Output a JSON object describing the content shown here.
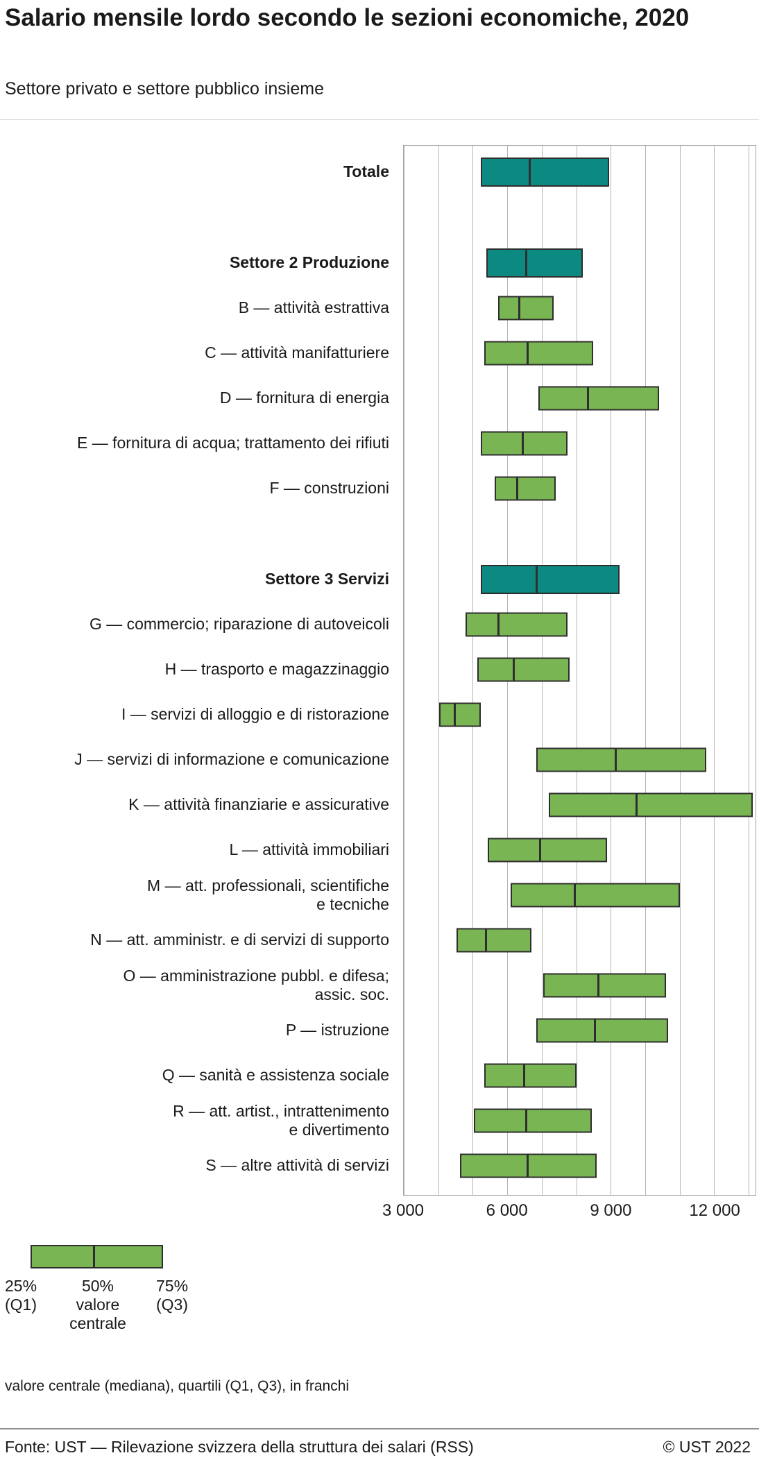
{
  "header": {
    "title": "Salario mensile lordo secondo le sezioni economiche, 2020",
    "subtitle": "Settore privato e settore pubblico insieme"
  },
  "chart_data": {
    "type": "bar",
    "variant": "horizontal quartile-range bars (Q1–Q3 box with median line)",
    "unit": "franchi (CHF) al mese",
    "title": "Salario mensile lordo secondo le sezioni economiche, 2020",
    "subtitle": "Settore privato e settore pubblico insieme",
    "xlabel": "",
    "legend_position": "bottom-left",
    "grid": true,
    "axis": {
      "min": 3000,
      "max": 13200,
      "grid_step": 1000,
      "grid_max": 13000,
      "ticks": [
        {
          "value": 3000,
          "label": "3 000"
        },
        {
          "value": 6000,
          "label": "6 000"
        },
        {
          "value": 9000,
          "label": "9 000"
        },
        {
          "value": 12000,
          "label": "12 000"
        }
      ]
    },
    "colors": {
      "teal": "#0c8a82",
      "green": "#7ab553",
      "outline": "#2e2e2e",
      "grid": "#b5b5b5"
    },
    "rows": [
      {
        "label": "Totale",
        "bold": true,
        "color": "teal",
        "q1": 5250,
        "median": 6650,
        "q3": 8950
      },
      {
        "spacer": true
      },
      {
        "label": "Settore 2 Produzione",
        "bold": true,
        "color": "teal",
        "q1": 5400,
        "median": 6550,
        "q3": 8200
      },
      {
        "label": "B — attività estrattiva",
        "color": "green",
        "q1": 5750,
        "median": 6350,
        "q3": 7350
      },
      {
        "label": "C — attività manifatturiere",
        "color": "green",
        "q1": 5350,
        "median": 6600,
        "q3": 8500
      },
      {
        "label": "D — fornitura di energia",
        "color": "green",
        "q1": 6900,
        "median": 8350,
        "q3": 10400
      },
      {
        "label": "E — fornitura di acqua; trattamento dei rifiuti",
        "color": "green",
        "q1": 5250,
        "median": 6450,
        "q3": 7750
      },
      {
        "label": "F — construzioni",
        "color": "green",
        "q1": 5650,
        "median": 6300,
        "q3": 7400
      },
      {
        "spacer": true
      },
      {
        "label": "Settore 3 Servizi",
        "bold": true,
        "color": "teal",
        "q1": 5250,
        "median": 6850,
        "q3": 9250
      },
      {
        "label": "G — commercio; riparazione di autoveicoli",
        "color": "green",
        "q1": 4800,
        "median": 5750,
        "q3": 7750
      },
      {
        "label": "H — trasporto e magazzinaggio",
        "color": "green",
        "q1": 5150,
        "median": 6200,
        "q3": 7800
      },
      {
        "label": "I — servizi di alloggio e di ristorazione",
        "color": "green",
        "q1": 4050,
        "median": 4500,
        "q3": 5250
      },
      {
        "label": "J — servizi di informazione e comunicazione",
        "color": "green",
        "q1": 6850,
        "median": 9150,
        "q3": 11750
      },
      {
        "label": "K — attività finanziarie e assicurative",
        "color": "green",
        "q1": 7200,
        "median": 9750,
        "q3": 13100
      },
      {
        "label": "L — attività immobiliari",
        "color": "green",
        "q1": 5450,
        "median": 6950,
        "q3": 8900
      },
      {
        "label": "M — att. professionali, scientifiche\ne tecniche",
        "color": "green",
        "q1": 6100,
        "median": 7950,
        "q3": 11000
      },
      {
        "label": "N — att. amministr. e di servizi di supporto",
        "color": "green",
        "q1": 4550,
        "median": 5400,
        "q3": 6700
      },
      {
        "label": "O — amministrazione pubbl. e difesa;\nassic. soc.",
        "color": "green",
        "q1": 7050,
        "median": 8650,
        "q3": 10600
      },
      {
        "label": "P — istruzione",
        "color": "green",
        "q1": 6850,
        "median": 8550,
        "q3": 10650
      },
      {
        "label": "Q — sanità e assistenza sociale",
        "color": "green",
        "q1": 5350,
        "median": 6500,
        "q3": 8000
      },
      {
        "label": "R — att. artist., intrattenimento\ne divertimento",
        "color": "green",
        "q1": 5050,
        "median": 6550,
        "q3": 8450
      },
      {
        "label": "S — altre attività di servizi",
        "color": "green",
        "q1": 4650,
        "median": 6600,
        "q3": 8600
      }
    ],
    "legend": {
      "q1_label": "25%\n(Q1)",
      "median_label": "50%\nvalore\ncentrale",
      "q3_label": "75%\n(Q3)"
    },
    "note": "valore centrale (mediana), quartili (Q1, Q3), in franchi"
  },
  "footer": {
    "source": "Fonte: UST — Rilevazione svizzera della struttura dei salari (RSS)",
    "copyright": "© UST 2022"
  }
}
